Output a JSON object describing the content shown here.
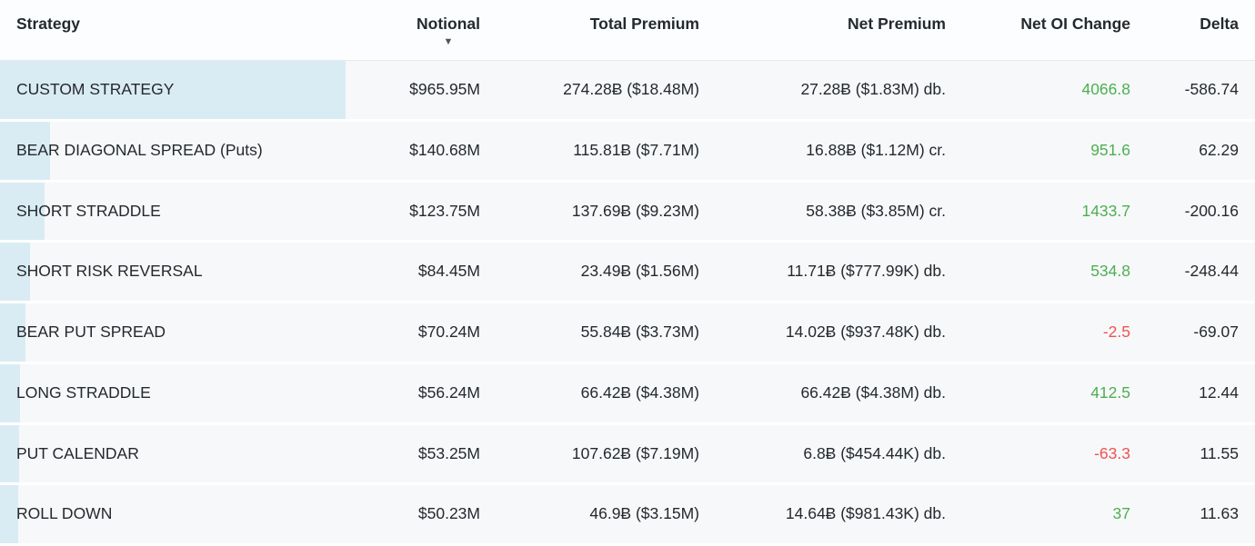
{
  "table": {
    "sort_icon": "▼",
    "sorted_column": "Notional",
    "sort_direction": "descending",
    "columns": [
      {
        "key": "strategy",
        "label": "Strategy",
        "align": "left"
      },
      {
        "key": "notional",
        "label": "Notional",
        "align": "right"
      },
      {
        "key": "total_premium",
        "label": "Total Premium",
        "align": "right"
      },
      {
        "key": "net_premium",
        "label": "Net Premium",
        "align": "right"
      },
      {
        "key": "net_oi_change",
        "label": "Net OI Change",
        "align": "right"
      },
      {
        "key": "delta",
        "label": "Delta",
        "align": "right"
      }
    ],
    "rows": [
      {
        "strategy": "CUSTOM STRATEGY",
        "notional": "$965.95M",
        "notional_musd": 965.95,
        "total_premium": "274.28₿ ($18.48M)",
        "net_premium": "27.28₿ ($1.83M) db.",
        "net_oi_change": "4066.8",
        "delta": "-586.74"
      },
      {
        "strategy": "BEAR DIAGONAL SPREAD (Puts)",
        "notional": "$140.68M",
        "notional_musd": 140.68,
        "total_premium": "115.81₿ ($7.71M)",
        "net_premium": "16.88₿ ($1.12M) cr.",
        "net_oi_change": "951.6",
        "delta": "62.29"
      },
      {
        "strategy": "SHORT STRADDLE",
        "notional": "$123.75M",
        "notional_musd": 123.75,
        "total_premium": "137.69₿ ($9.23M)",
        "net_premium": "58.38₿ ($3.85M) cr.",
        "net_oi_change": "1433.7",
        "delta": "-200.16"
      },
      {
        "strategy": "SHORT RISK REVERSAL",
        "notional": "$84.45M",
        "notional_musd": 84.45,
        "total_premium": "23.49₿ ($1.56M)",
        "net_premium": "11.71₿ ($777.99K) db.",
        "net_oi_change": "534.8",
        "delta": "-248.44"
      },
      {
        "strategy": "BEAR PUT SPREAD",
        "notional": "$70.24M",
        "notional_musd": 70.24,
        "total_premium": "55.84₿ ($3.73M)",
        "net_premium": "14.02₿ ($937.48K) db.",
        "net_oi_change": "-2.5",
        "delta": "-69.07"
      },
      {
        "strategy": "LONG STRADDLE",
        "notional": "$56.24M",
        "notional_musd": 56.24,
        "total_premium": "66.42₿ ($4.38M)",
        "net_premium": "66.42₿ ($4.38M) db.",
        "net_oi_change": "412.5",
        "delta": "12.44"
      },
      {
        "strategy": "PUT CALENDAR",
        "notional": "$53.25M",
        "notional_musd": 53.25,
        "total_premium": "107.62₿ ($7.19M)",
        "net_premium": "6.8₿ ($454.44K) db.",
        "net_oi_change": "-63.3",
        "delta": "11.55"
      },
      {
        "strategy": "ROLL DOWN",
        "notional": "$50.23M",
        "notional_musd": 50.23,
        "total_premium": "46.9₿ ($3.15M)",
        "net_premium": "14.64₿ ($981.43K) db.",
        "net_oi_change": "37",
        "delta": "11.63"
      }
    ]
  },
  "colors": {
    "positive": "#4caf50",
    "negative": "#ef5350",
    "bar": "#daecf3",
    "row_bg": "#f7f8fa",
    "header_text": "#5d6571",
    "body_text": "#24292e"
  }
}
